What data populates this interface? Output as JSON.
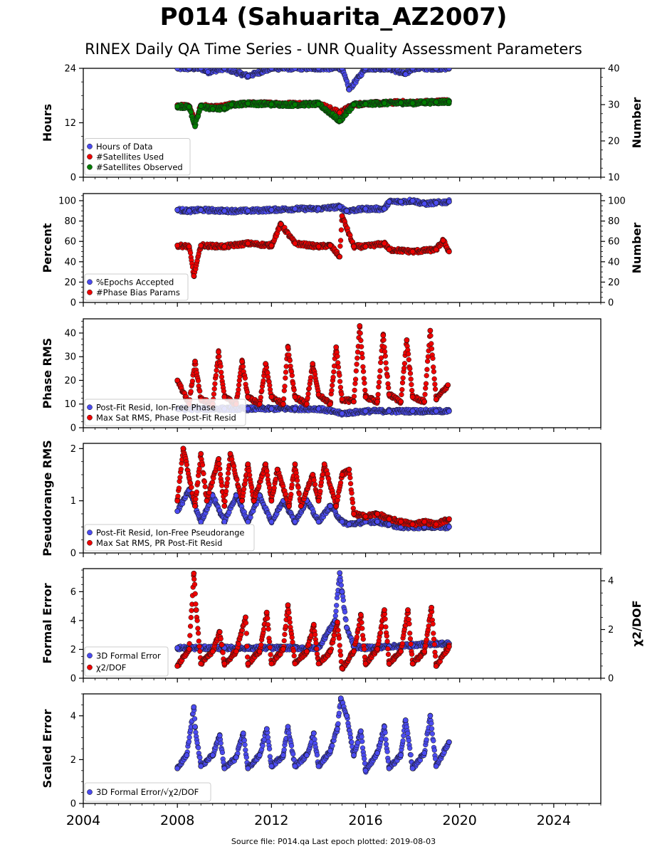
{
  "title": "P014 (Sahuarita_AZ2007)",
  "subtitle": "RINEX Daily QA Time Series - UNR Quality Assessment Parameters",
  "footer": "Source file: P014.qa Last epoch plotted: 2019-08-03",
  "colors": {
    "blue": "#4b4bf0",
    "red": "#ee0000",
    "green": "#007d00",
    "frame": "#000000"
  },
  "chart_data": [
    {
      "type": "scatter",
      "ylabel": "Hours",
      "y2label": "Number",
      "xlim": [
        2004,
        2026
      ],
      "ylim": [
        0,
        24
      ],
      "y2lim": [
        10,
        40
      ],
      "yticks": [
        "0",
        "12",
        "24"
      ],
      "yticks_values": [
        0,
        12,
        24
      ],
      "y2ticks": [
        "10",
        "20",
        "30",
        "40"
      ],
      "y2ticks_values": [
        10,
        20,
        30,
        40
      ],
      "legend": "lower-left",
      "grid": false,
      "series": [
        {
          "name": "Hours of Data",
          "color": "blue",
          "axis": "left",
          "x": [
            2008.0,
            2008.5,
            2009.0,
            2009.3,
            2010.0,
            2011.0,
            2012.0,
            2013.0,
            2014.0,
            2015.0,
            2015.3,
            2016.0,
            2017.0,
            2017.7,
            2018.0,
            2019.0,
            2019.55
          ],
          "y": [
            24,
            24,
            24,
            23.2,
            24,
            22.3,
            24,
            24,
            24,
            24,
            19.3,
            24,
            24,
            22.7,
            24,
            24,
            24
          ]
        },
        {
          "name": "#Satellites Used",
          "color": "red",
          "axis": "right",
          "x": [
            2008.0,
            2008.5,
            2008.75,
            2009.0,
            2009.5,
            2009.85,
            2010.3,
            2011.0,
            2012.0,
            2013.0,
            2014.0,
            2014.9,
            2015.5,
            2016.0,
            2016.8,
            2017.5,
            2018.0,
            2018.5,
            2019.0,
            2019.55
          ],
          "y": [
            29.8,
            29.6,
            25.3,
            29.8,
            29.2,
            29.4,
            30.0,
            30.3,
            30.3,
            30.2,
            30.3,
            27.8,
            30.0,
            30.3,
            30.4,
            30.7,
            30.5,
            30.7,
            30.8,
            31.0
          ]
        },
        {
          "name": "#Satellites Observed",
          "color": "green",
          "axis": "right",
          "x": [
            2008.0,
            2008.5,
            2008.75,
            2009.0,
            2009.5,
            2010.0,
            2010.3,
            2011.0,
            2012.0,
            2013.0,
            2014.0,
            2014.9,
            2015.5,
            2016.0,
            2016.8,
            2017.5,
            2018.0,
            2018.5,
            2019.0,
            2019.55
          ],
          "y": [
            29.5,
            29.4,
            24.0,
            29.6,
            28.8,
            29.0,
            30.0,
            30.3,
            30.1,
            30.0,
            30.2,
            25.5,
            30.0,
            30.2,
            30.4,
            30.5,
            30.4,
            30.6,
            30.7,
            30.8
          ]
        }
      ]
    },
    {
      "type": "scatter",
      "ylabel": "Percent",
      "y2label": "Number",
      "xlim": [
        2004,
        2026
      ],
      "ylim": [
        0,
        107
      ],
      "y2lim": [
        0,
        107
      ],
      "yticks": [
        "0",
        "20",
        "40",
        "60",
        "80",
        "100"
      ],
      "yticks_values": [
        0,
        20,
        40,
        60,
        80,
        100
      ],
      "y2ticks": [
        "0",
        "20",
        "40",
        "60",
        "80",
        "100"
      ],
      "y2ticks_values": [
        0,
        20,
        40,
        60,
        80,
        100
      ],
      "legend": "lower-left",
      "grid": false,
      "series": [
        {
          "name": "%Epochs Accepted",
          "color": "blue",
          "axis": "left",
          "x": [
            2008.0,
            2008.5,
            2009.0,
            2010.0,
            2011.0,
            2012.0,
            2013.0,
            2014.0,
            2014.9,
            2015.2,
            2016.0,
            2016.8,
            2017.0,
            2017.5,
            2018.0,
            2018.5,
            2019.0,
            2019.55
          ],
          "y": [
            91,
            90,
            91,
            90,
            90,
            91,
            92,
            92,
            94,
            90,
            92,
            92,
            99,
            99,
            100,
            97,
            98,
            99
          ]
        },
        {
          "name": "#Phase Bias Params",
          "color": "red",
          "axis": "right",
          "x": [
            2008.0,
            2008.5,
            2008.7,
            2009.0,
            2010.0,
            2011.0,
            2012.0,
            2012.4,
            2013.0,
            2014.0,
            2014.5,
            2014.9,
            2015.0,
            2015.5,
            2016.0,
            2016.8,
            2017.0,
            2018.0,
            2019.0,
            2019.3,
            2019.55
          ],
          "y": [
            56,
            55,
            26,
            56,
            55,
            58,
            56,
            77,
            58,
            55,
            56,
            45,
            85,
            55,
            55,
            58,
            52,
            50,
            52,
            61,
            50
          ]
        }
      ]
    },
    {
      "type": "scatter",
      "ylabel": "Phase RMS",
      "xlim": [
        2004,
        2026
      ],
      "ylim": [
        0,
        46
      ],
      "yticks": [
        "0",
        "10",
        "20",
        "30",
        "40"
      ],
      "yticks_values": [
        0,
        10,
        20,
        30,
        40
      ],
      "legend": "lower-left",
      "grid": false,
      "series": [
        {
          "name": "Post-Fit Resid, Ion-Free Phase",
          "color": "blue",
          "axis": "left",
          "x": [
            2008.0,
            2009.0,
            2010.0,
            2011.0,
            2012.0,
            2013.0,
            2014.0,
            2015.0,
            2016.0,
            2017.0,
            2018.0,
            2019.0,
            2019.55
          ],
          "y": [
            8,
            8,
            8,
            8,
            8,
            8,
            8,
            6,
            7,
            7,
            7,
            7,
            7
          ]
        },
        {
          "name": "Max Sat RMS, Phase Post-Fit Resid",
          "color": "red",
          "axis": "left",
          "x": [
            2008.0,
            2008.5,
            2008.75,
            2009.0,
            2009.5,
            2009.75,
            2010.0,
            2010.5,
            2010.75,
            2011.0,
            2011.5,
            2011.75,
            2012.0,
            2012.5,
            2012.7,
            2013.0,
            2013.5,
            2013.75,
            2014.0,
            2014.5,
            2014.75,
            2015.0,
            2015.5,
            2015.75,
            2016.0,
            2016.5,
            2016.75,
            2017.0,
            2017.5,
            2017.75,
            2018.0,
            2018.5,
            2018.75,
            2019.0,
            2019.5
          ],
          "y": [
            20,
            10,
            28,
            12,
            10,
            32,
            13,
            10,
            28,
            13,
            10,
            27,
            13,
            10,
            34,
            13,
            10,
            27,
            14,
            10,
            34,
            12,
            11,
            43,
            13,
            11,
            39,
            14,
            11,
            37,
            13,
            11,
            41,
            12,
            18
          ]
        }
      ]
    },
    {
      "type": "scatter",
      "ylabel": "Pseudorange RMS",
      "xlim": [
        2004,
        2026
      ],
      "ylim": [
        0,
        2.1
      ],
      "yticks": [
        "0",
        "1",
        "2"
      ],
      "yticks_values": [
        0,
        1,
        2
      ],
      "legend": "lower-left",
      "grid": false,
      "series": [
        {
          "name": "Post-Fit Resid, Ion-Free Pseudorange",
          "color": "blue",
          "axis": "left",
          "x": [
            2008.0,
            2008.5,
            2009.0,
            2009.5,
            2010.0,
            2010.5,
            2011.0,
            2011.5,
            2012.0,
            2012.5,
            2013.0,
            2013.5,
            2014.0,
            2014.5,
            2015.0,
            2015.3,
            2016.0,
            2016.5,
            2017.0,
            2017.5,
            2018.0,
            2018.5,
            2019.0,
            2019.55
          ],
          "y": [
            0.8,
            1.2,
            0.6,
            1.1,
            0.6,
            1.1,
            0.6,
            1.1,
            0.6,
            1.0,
            0.6,
            1.0,
            0.6,
            0.9,
            0.6,
            0.55,
            0.6,
            0.6,
            0.55,
            0.5,
            0.5,
            0.5,
            0.5,
            0.5
          ]
        },
        {
          "name": "Max Sat RMS, PR Post-Fit Resid",
          "color": "red",
          "axis": "left",
          "x": [
            2008.0,
            2008.25,
            2008.75,
            2009.0,
            2009.25,
            2009.75,
            2010.0,
            2010.25,
            2010.75,
            2011.0,
            2011.25,
            2011.75,
            2012.0,
            2012.25,
            2012.75,
            2013.0,
            2013.25,
            2013.75,
            2014.0,
            2014.25,
            2014.75,
            2015.0,
            2015.3,
            2015.5,
            2016.0,
            2016.5,
            2017.0,
            2017.5,
            2018.0,
            2018.5,
            2019.0,
            2019.55
          ],
          "y": [
            1.0,
            2.0,
            0.9,
            1.9,
            1.0,
            1.8,
            0.9,
            1.9,
            1.0,
            1.7,
            1.0,
            1.7,
            1.0,
            1.6,
            0.9,
            1.7,
            0.9,
            1.5,
            1.0,
            1.7,
            0.9,
            1.5,
            1.6,
            0.75,
            0.7,
            0.75,
            0.65,
            0.6,
            0.55,
            0.6,
            0.55,
            0.65
          ]
        }
      ]
    },
    {
      "type": "scatter",
      "ylabel": "Formal Error",
      "y2label": "χ2/DOF",
      "xlim": [
        2004,
        2026
      ],
      "ylim": [
        0,
        7.6
      ],
      "y2lim": [
        0,
        4.5
      ],
      "yticks": [
        "0",
        "2",
        "4",
        "6"
      ],
      "yticks_values": [
        0,
        2,
        4,
        6
      ],
      "y2ticks": [
        "0",
        "2",
        "4"
      ],
      "y2ticks_values": [
        0,
        2,
        4
      ],
      "legend": "lower-left",
      "grid": false,
      "series": [
        {
          "name": "3D Formal Error",
          "color": "blue",
          "axis": "left",
          "x": [
            2008.0,
            2009.0,
            2010.0,
            2011.0,
            2012.0,
            2013.0,
            2014.0,
            2014.7,
            2014.9,
            2015.0,
            2015.2,
            2015.5,
            2016.0,
            2017.0,
            2018.0,
            2019.0,
            2019.55
          ],
          "y": [
            2.1,
            2.1,
            2.1,
            2.1,
            2.1,
            2.1,
            2.1,
            4.0,
            7.3,
            6.0,
            3.5,
            2.2,
            2.1,
            2.2,
            2.3,
            2.4,
            2.4
          ]
        },
        {
          "name": "χ2/DOF",
          "color": "red",
          "axis": "right",
          "x": [
            2008.0,
            2008.5,
            2008.7,
            2008.8,
            2009.0,
            2009.5,
            2009.8,
            2010.0,
            2010.5,
            2010.9,
            2011.0,
            2011.5,
            2011.8,
            2012.0,
            2012.5,
            2012.7,
            2013.0,
            2013.5,
            2013.8,
            2014.0,
            2014.5,
            2014.8,
            2015.0,
            2015.5,
            2015.8,
            2016.0,
            2016.5,
            2016.8,
            2017.0,
            2017.5,
            2017.8,
            2018.0,
            2018.5,
            2018.8,
            2019.0,
            2019.55
          ],
          "y": [
            0.5,
            1.2,
            4.3,
            2.8,
            0.6,
            1.1,
            1.9,
            0.6,
            1.1,
            2.5,
            0.6,
            1.1,
            2.7,
            0.6,
            1.2,
            3.0,
            0.6,
            1.1,
            2.2,
            0.6,
            1.1,
            2.3,
            0.4,
            1.1,
            2.6,
            0.6,
            1.2,
            2.8,
            0.6,
            1.1,
            2.8,
            0.6,
            1.1,
            2.9,
            0.5,
            1.3
          ]
        }
      ]
    },
    {
      "type": "scatter",
      "ylabel": "Scaled Error",
      "xlim": [
        2004,
        2026
      ],
      "ylim": [
        0,
        5
      ],
      "yticks": [
        "0",
        "2",
        "4"
      ],
      "yticks_values": [
        0,
        2,
        4
      ],
      "xticks": [
        "2004",
        "2008",
        "2012",
        "2016",
        "2020",
        "2024"
      ],
      "xticks_values": [
        2004,
        2008,
        2012,
        2016,
        2020,
        2024
      ],
      "legend": "lower-left",
      "grid": false,
      "series": [
        {
          "name": "3D Formal Error/√χ2/DOF",
          "color": "blue",
          "axis": "left",
          "x": [
            2008.0,
            2008.4,
            2008.7,
            2008.75,
            2009.0,
            2009.5,
            2009.8,
            2010.0,
            2010.5,
            2010.8,
            2011.0,
            2011.5,
            2011.8,
            2012.0,
            2012.5,
            2012.7,
            2013.0,
            2013.5,
            2013.8,
            2014.0,
            2014.5,
            2014.8,
            2014.95,
            2015.2,
            2015.5,
            2015.8,
            2016.0,
            2016.5,
            2016.8,
            2017.0,
            2017.5,
            2017.7,
            2018.0,
            2018.5,
            2018.75,
            2019.0,
            2019.55
          ],
          "y": [
            1.6,
            2.2,
            4.4,
            3.5,
            1.7,
            2.2,
            3.1,
            1.6,
            2.1,
            3.2,
            1.6,
            2.2,
            3.4,
            1.7,
            2.2,
            3.5,
            1.7,
            2.2,
            3.2,
            1.7,
            2.4,
            3.4,
            4.8,
            4.0,
            2.2,
            3.3,
            1.5,
            2.3,
            3.5,
            1.6,
            2.2,
            3.8,
            1.6,
            2.3,
            4.0,
            1.7,
            2.8
          ]
        }
      ]
    }
  ]
}
